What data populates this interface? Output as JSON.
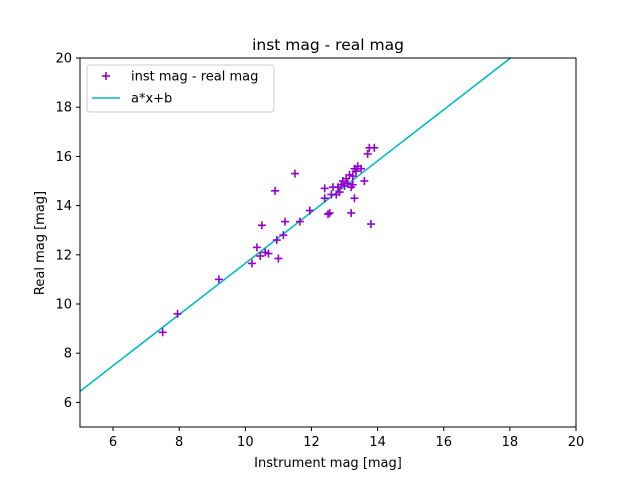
{
  "chart_data": {
    "type": "scatter",
    "title": "inst mag - real mag",
    "xlabel": "Instrument mag [mag]",
    "ylabel": "Real mag [mag]",
    "xlim": [
      5,
      20
    ],
    "ylim": [
      5,
      20
    ],
    "xticks": [
      6,
      8,
      10,
      12,
      14,
      16,
      18,
      20
    ],
    "yticks": [
      6,
      8,
      10,
      12,
      14,
      16,
      18,
      20
    ],
    "grid": false,
    "legend_position": "top-left",
    "series": [
      {
        "name": "inst mag - real mag",
        "kind": "scatter",
        "marker": "+",
        "color": "#9400d3",
        "points": [
          [
            7.5,
            8.85
          ],
          [
            7.95,
            9.6
          ],
          [
            9.2,
            11.0
          ],
          [
            10.2,
            11.65
          ],
          [
            10.35,
            12.3
          ],
          [
            10.45,
            11.95
          ],
          [
            10.5,
            13.2
          ],
          [
            10.6,
            12.1
          ],
          [
            10.7,
            12.05
          ],
          [
            10.9,
            14.6
          ],
          [
            10.95,
            12.6
          ],
          [
            11.0,
            11.85
          ],
          [
            11.15,
            12.8
          ],
          [
            11.2,
            13.35
          ],
          [
            11.5,
            15.3
          ],
          [
            11.65,
            13.35
          ],
          [
            11.95,
            13.8
          ],
          [
            12.4,
            14.7
          ],
          [
            12.4,
            14.3
          ],
          [
            12.5,
            13.65
          ],
          [
            12.55,
            13.7
          ],
          [
            12.6,
            14.45
          ],
          [
            12.65,
            14.75
          ],
          [
            12.75,
            14.45
          ],
          [
            12.8,
            14.75
          ],
          [
            12.85,
            14.55
          ],
          [
            12.9,
            14.85
          ],
          [
            12.95,
            15.0
          ],
          [
            13.0,
            14.8
          ],
          [
            13.05,
            15.1
          ],
          [
            13.1,
            14.9
          ],
          [
            13.15,
            15.25
          ],
          [
            13.2,
            13.7
          ],
          [
            13.2,
            14.75
          ],
          [
            13.25,
            15.2
          ],
          [
            13.25,
            14.85
          ],
          [
            13.3,
            15.5
          ],
          [
            13.3,
            14.3
          ],
          [
            13.35,
            15.4
          ],
          [
            13.4,
            15.6
          ],
          [
            13.5,
            15.5
          ],
          [
            13.6,
            15.0
          ],
          [
            13.7,
            16.1
          ],
          [
            13.75,
            16.35
          ],
          [
            13.8,
            13.25
          ],
          [
            13.9,
            16.35
          ]
        ]
      },
      {
        "name": "a*x+b",
        "kind": "line",
        "color": "#00bfbf",
        "x": [
          5,
          18.02
        ],
        "y": [
          6.45,
          20.0
        ]
      }
    ]
  }
}
